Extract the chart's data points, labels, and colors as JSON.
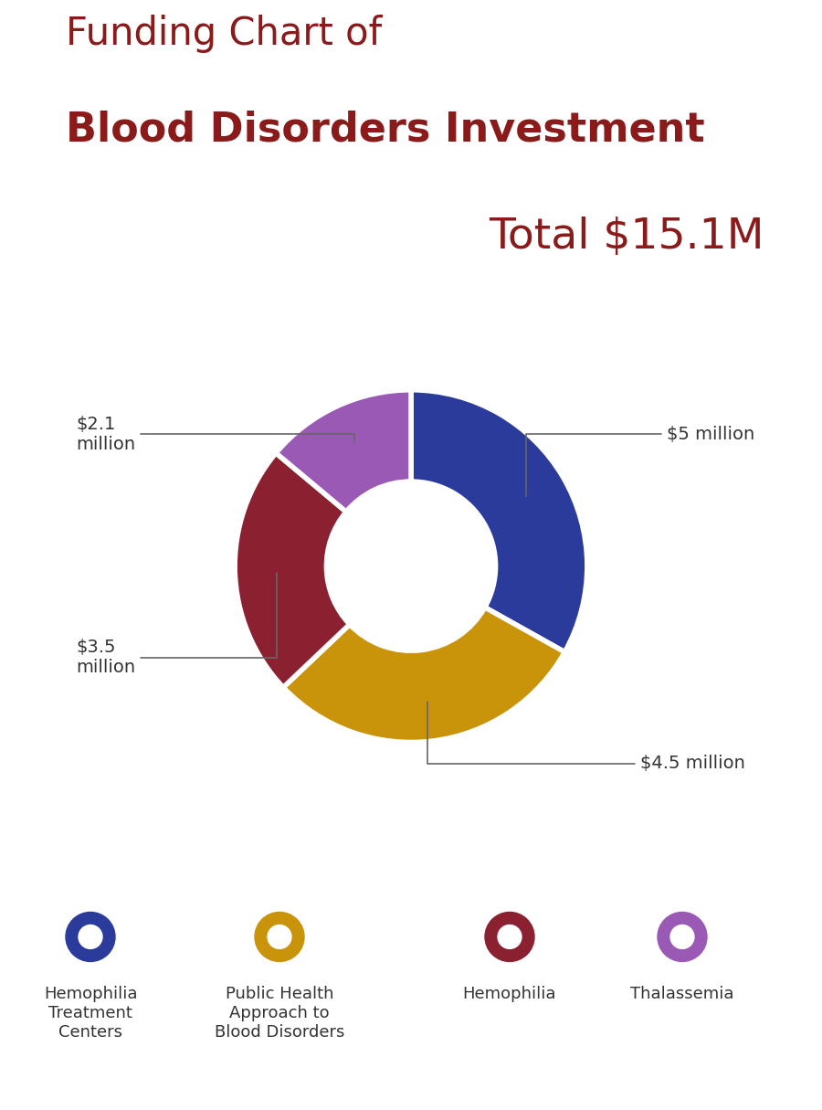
{
  "title_line1": "Funding Chart of",
  "title_line2": "Blood Disorders Investment",
  "title_total": "Total $15.1M",
  "title_color": "#8B1A1A",
  "background_color": "#FFFFFF",
  "slices": [
    5.0,
    4.5,
    3.5,
    2.1
  ],
  "slice_colors": [
    "#2B3B9B",
    "#C9930A",
    "#8B2030",
    "#9B59B6"
  ],
  "legend_labels": [
    "Hemophilia\nTreatment\nCenters",
    "Public Health\nApproach to\nBlood Disorders",
    "Hemophilia",
    "Thalassemia"
  ],
  "legend_colors": [
    "#2B3B9B",
    "#C9930A",
    "#8B2030",
    "#9B59B6"
  ],
  "annotation_color": "#333333",
  "line_color": "#666666",
  "startangle": 90,
  "title1_fontsize": 30,
  "title2_fontsize": 32,
  "total_fontsize": 34,
  "annot_fontsize": 14,
  "legend_fontsize": 13
}
